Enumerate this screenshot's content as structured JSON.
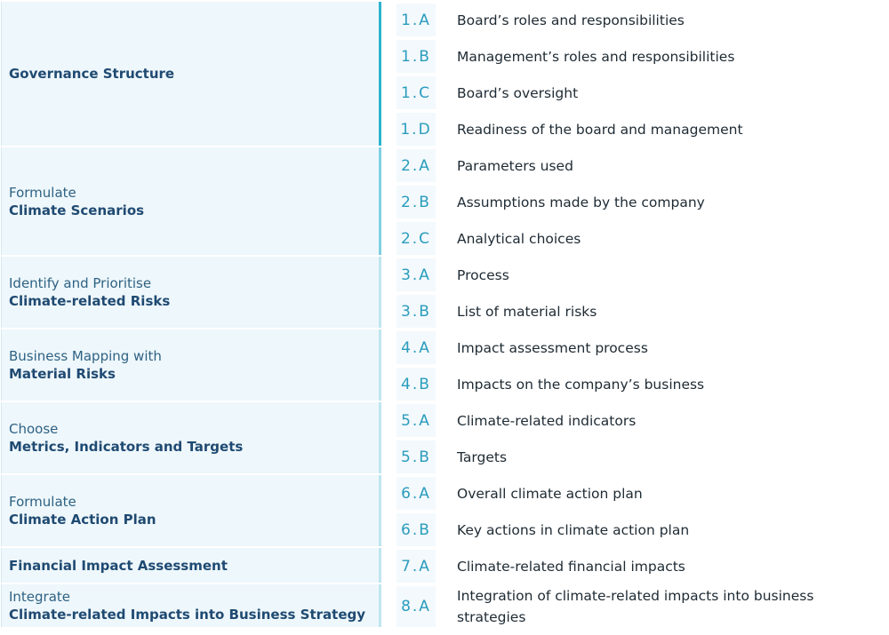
{
  "sections": [
    {
      "title": "Governance Structure",
      "items": [
        {
          "code": "1.A",
          "text": "Board’s roles and responsibilities"
        },
        {
          "code": "1.B",
          "text": "Management’s roles and responsibilities"
        },
        {
          "code": "1.C",
          "text": "Board’s oversight"
        },
        {
          "code": "1.D",
          "text": "Readiness of the board and management"
        }
      ]
    },
    {
      "prefix": "Formulate",
      "title": "Climate Scenarios",
      "items": [
        {
          "code": "2.A",
          "text": "Parameters used"
        },
        {
          "code": "2.B",
          "text": "Assumptions made by the company"
        },
        {
          "code": "2.C",
          "text": "Analytical choices"
        }
      ]
    },
    {
      "prefix": "Identify and Prioritise",
      "title": "Climate-related Risks",
      "items": [
        {
          "code": "3.A",
          "text": "Process"
        },
        {
          "code": "3.B",
          "text": "List of material risks"
        }
      ]
    },
    {
      "prefix": "Business Mapping with",
      "title": "Material Risks",
      "items": [
        {
          "code": "4.A",
          "text": "Impact assessment process"
        },
        {
          "code": "4.B",
          "text": "Impacts on the company’s business"
        }
      ]
    },
    {
      "prefix": "Choose",
      "title": "Metrics, Indicators and Targets",
      "items": [
        {
          "code": "5.A",
          "text": "Climate-related indicators"
        },
        {
          "code": "5.B",
          "text": "Targets"
        }
      ]
    },
    {
      "prefix": "Formulate",
      "title": "Climate Action Plan",
      "items": [
        {
          "code": "6.A",
          "text": "Overall climate action plan"
        },
        {
          "code": "6.B",
          "text": "Key actions in climate action plan"
        }
      ]
    },
    {
      "title": "Financial Impact Assessment",
      "items": [
        {
          "code": "7.A",
          "text": "Climate-related financial impacts"
        }
      ]
    },
    {
      "prefix": "Integrate",
      "title": "Climate-related Impacts into Business Strategy",
      "items": [
        {
          "code": "8.A",
          "text": "Integration of climate-related impacts into business strategies"
        }
      ]
    }
  ]
}
